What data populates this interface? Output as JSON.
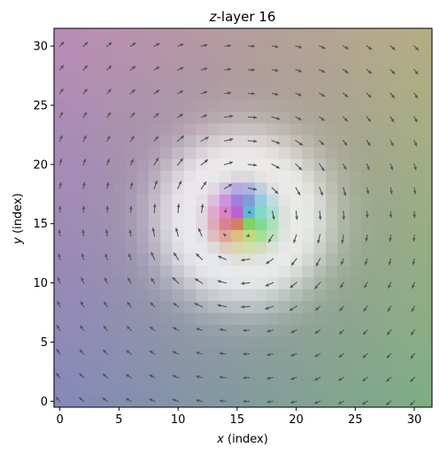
{
  "chart_data": {
    "type": "heatmap",
    "title_var": "z",
    "title_rest": "-layer 16",
    "xlabel_var": "x",
    "xlabel_rest": " (index)",
    "ylabel_var": "y",
    "ylabel_rest": " (index)",
    "grid_size": [
      32,
      32
    ],
    "xlim": [
      -0.5,
      31.5
    ],
    "ylim": [
      -0.5,
      31.5
    ],
    "xticks": [
      0,
      5,
      10,
      15,
      20,
      25,
      30
    ],
    "yticks": [
      0,
      5,
      10,
      15,
      20,
      25,
      30
    ],
    "grid": false,
    "colormap": "HSL hue by in-plane angle, lightness by out-of-plane component",
    "vortex": {
      "center": [
        15.5,
        15.5
      ],
      "core_radius": 3.0
    },
    "quiver": {
      "step": 2,
      "start": 0,
      "color": "#555555"
    },
    "corner_colors": {
      "top_left": "#b88cb6",
      "top_right": "#b3ad85",
      "bottom_left": "#8689b8",
      "bottom_right": "#80ad84"
    }
  }
}
